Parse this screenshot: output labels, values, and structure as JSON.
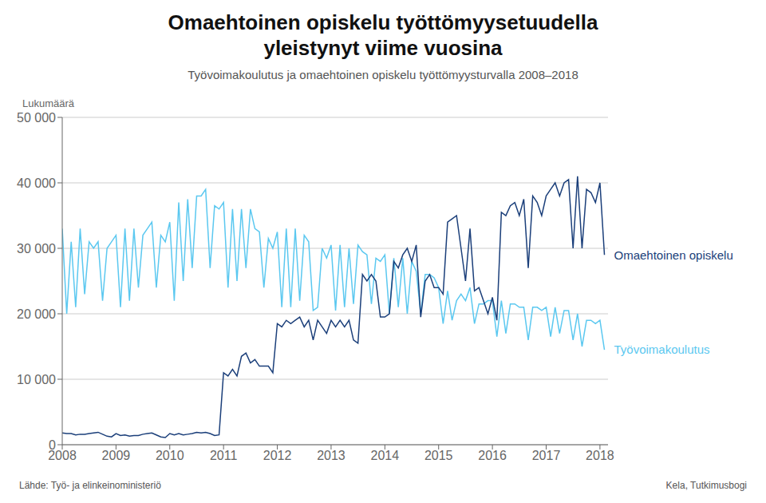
{
  "chart_data": {
    "type": "line",
    "title": "Omaehtoinen opiskelu työttömyysetuudella\nyleistynyt viime vuosina",
    "subtitle": "Työvoimakoulutus ja omaehtoinen opiskelu työttömyysturvalla 2008–2018",
    "ylabel": "Lukumäärä",
    "annotations": [
      "Lähde: Työ- ja elinkeinoministeriö",
      "Kela, Tutkimusbogi"
    ],
    "grid": true,
    "xlim": [
      2008,
      2018.15
    ],
    "xticks": [
      2008,
      2009,
      2010,
      2011,
      2012,
      2013,
      2014,
      2015,
      2016,
      2017,
      2018
    ],
    "ylim": [
      0,
      50000
    ],
    "yticks": [
      0,
      {
        "value": 10000,
        "label": "10 000"
      },
      {
        "value": 20000,
        "label": "20 000"
      },
      {
        "value": 30000,
        "label": "30 000"
      },
      {
        "value": 40000,
        "label": "40 000"
      },
      {
        "value": 50000,
        "label": "50 000"
      }
    ],
    "x": [
      2008,
      2008.0833333333333,
      2008.1666666666667,
      2008.25,
      2008.3333333333333,
      2008.4166666666667,
      2008.5,
      2008.5833333333333,
      2008.6666666666667,
      2008.75,
      2008.8333333333333,
      2008.9166666666667,
      2009,
      2009.0833333333333,
      2009.1666666666667,
      2009.25,
      2009.3333333333333,
      2009.4166666666667,
      2009.5,
      2009.5833333333333,
      2009.6666666666667,
      2009.75,
      2009.8333333333333,
      2009.9166666666667,
      2010,
      2010.0833333333333,
      2010.1666666666667,
      2010.25,
      2010.3333333333333,
      2010.4166666666667,
      2010.5,
      2010.5833333333333,
      2010.6666666666667,
      2010.75,
      2010.8333333333333,
      2010.9166666666667,
      2011,
      2011.0833333333333,
      2011.1666666666667,
      2011.25,
      2011.3333333333333,
      2011.4166666666667,
      2011.5,
      2011.5833333333333,
      2011.6666666666667,
      2011.75,
      2011.8333333333333,
      2011.9166666666667,
      2012,
      2012.0833333333333,
      2012.1666666666667,
      2012.25,
      2012.3333333333333,
      2012.4166666666667,
      2012.5,
      2012.5833333333333,
      2012.6666666666667,
      2012.75,
      2012.8333333333333,
      2012.9166666666667,
      2013,
      2013.0833333333333,
      2013.1666666666667,
      2013.25,
      2013.3333333333333,
      2013.4166666666667,
      2013.5,
      2013.5833333333333,
      2013.6666666666667,
      2013.75,
      2013.8333333333333,
      2013.9166666666667,
      2014,
      2014.0833333333333,
      2014.1666666666667,
      2014.25,
      2014.3333333333333,
      2014.4166666666667,
      2014.5,
      2014.5833333333333,
      2014.6666666666667,
      2014.75,
      2014.8333333333333,
      2014.9166666666667,
      2015,
      2015.0833333333333,
      2015.1666666666667,
      2015.25,
      2015.3333333333333,
      2015.4166666666667,
      2015.5,
      2015.5833333333333,
      2015.6666666666667,
      2015.75,
      2015.8333333333333,
      2015.9166666666667,
      2016,
      2016.0833333333333,
      2016.1666666666667,
      2016.25,
      2016.3333333333333,
      2016.4166666666667,
      2016.5,
      2016.5833333333333,
      2016.6666666666667,
      2016.75,
      2016.8333333333333,
      2016.9166666666667,
      2017,
      2017.0833333333333,
      2017.1666666666667,
      2017.25,
      2017.3333333333333,
      2017.4166666666667,
      2017.5,
      2017.5833333333333,
      2017.6666666666667,
      2017.75,
      2017.8333333333333,
      2017.9166666666667,
      2018,
      2018.0833333333333
    ],
    "series": [
      {
        "name": "Työvoimakoulutus",
        "color": "#5bc8f0",
        "values": [
          33000,
          20000,
          31000,
          21000,
          33000,
          23000,
          31000,
          30000,
          31000,
          22000,
          30000,
          31000,
          32000,
          21000,
          33000,
          22000,
          33000,
          24000,
          32000,
          33000,
          34000,
          24000,
          32000,
          31000,
          34000,
          22000,
          37000,
          25000,
          37500,
          27000,
          38000,
          38000,
          39000,
          27000,
          36500,
          36000,
          37000,
          24000,
          36000,
          25000,
          36000,
          27000,
          36000,
          33000,
          32500,
          24000,
          31500,
          30000,
          32500,
          21000,
          33000,
          21000,
          33000,
          22000,
          32000,
          31000,
          20500,
          21000,
          30000,
          28500,
          30500,
          20500,
          30500,
          21000,
          30000,
          21500,
          30500,
          29500,
          29000,
          21500,
          28500,
          28000,
          29000,
          20000,
          28500,
          21000,
          28500,
          20000,
          28000,
          26500,
          20000,
          26000,
          26000,
          25500,
          24000,
          18500,
          23500,
          19000,
          22000,
          23000,
          22000,
          24000,
          18500,
          21500,
          21500,
          22000,
          22000,
          16500,
          22000,
          17000,
          21500,
          21500,
          21000,
          21000,
          16000,
          21000,
          21000,
          20500,
          21000,
          16500,
          21000,
          17000,
          20500,
          20500,
          16000,
          20000,
          15000,
          19000,
          19000,
          18500,
          19000,
          14500
        ]
      },
      {
        "name": "Omaehtoinen opiskelu",
        "color": "#1b3f7a",
        "values": [
          1800,
          1700,
          1700,
          1500,
          1600,
          1600,
          1700,
          1800,
          1900,
          1600,
          1300,
          1200,
          1700,
          1400,
          1500,
          1300,
          1400,
          1400,
          1600,
          1700,
          1800,
          1500,
          1200,
          1100,
          1700,
          1500,
          1700,
          1500,
          1600,
          1700,
          1900,
          1800,
          1900,
          1700,
          1400,
          1500,
          11000,
          10500,
          11500,
          10500,
          13500,
          14000,
          12500,
          13000,
          12000,
          12000,
          12000,
          11000,
          18500,
          18000,
          19000,
          18500,
          19000,
          19500,
          18000,
          19000,
          16000,
          19000,
          18000,
          17000,
          19000,
          18000,
          19000,
          18000,
          19000,
          16000,
          15500,
          26000,
          25000,
          26000,
          25000,
          19500,
          19500,
          20000,
          28000,
          27000,
          29000,
          30000,
          28000,
          30500,
          19500,
          25000,
          26000,
          24000,
          24000,
          23000,
          34000,
          34500,
          35000,
          30000,
          25000,
          33000,
          23500,
          24000,
          22000,
          20000,
          22500,
          19000,
          35500,
          35000,
          36500,
          37000,
          35000,
          37500,
          27000,
          38000,
          37000,
          35000,
          38000,
          39000,
          40000,
          38000,
          40000,
          40500,
          30000,
          41000,
          30000,
          39000,
          38500,
          37000,
          40000,
          29000
        ]
      }
    ]
  }
}
